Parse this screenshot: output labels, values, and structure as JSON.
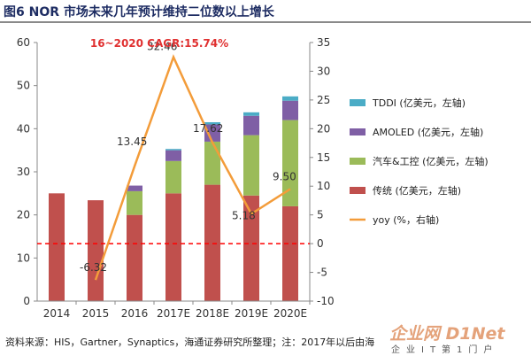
{
  "title": "图6  NOR 市场未来几年预计维持二位数以上增长",
  "source": "资料来源：HIS，Gartner，Synaptics，海通证券研究所整理；注：2017年以后由海",
  "watermark": {
    "main": "企业网 D1Net",
    "sub": "企业IT第1门户"
  },
  "colors": {
    "tddi": "#4bacc6",
    "amoled": "#7f5fa5",
    "auto": "#9bbb59",
    "traditional": "#c0504d",
    "yoy": "#f39c3a",
    "zero_line": "#ff0000"
  },
  "chart_data": {
    "type": "bar",
    "stacked": true,
    "annotation": "16~2020 CAGR:15.74%",
    "categories": [
      "2014",
      "2015",
      "2016",
      "2017E",
      "2018E",
      "2019E",
      "2020E"
    ],
    "y_left": {
      "range": [
        0,
        60
      ],
      "ticks": [
        "0",
        "10",
        "20",
        "30",
        "40",
        "50",
        "60"
      ]
    },
    "y_right": {
      "range": [
        -10,
        35
      ],
      "ticks": [
        "-10",
        "-5",
        "0",
        "5",
        "10",
        "15",
        "20",
        "25",
        "30",
        "35"
      ]
    },
    "series": [
      {
        "name": "传统 (亿美元，左轴)",
        "key": "traditional",
        "values": [
          25,
          23.4,
          20,
          25,
          27,
          24.5,
          22
        ]
      },
      {
        "name": "汽车&工控 (亿美元，左轴)",
        "key": "auto",
        "values": [
          0,
          0,
          5.5,
          7.5,
          10,
          14,
          20
        ]
      },
      {
        "name": "AMOLED (亿美元，左轴)",
        "key": "amoled",
        "values": [
          0,
          0,
          1.3,
          2.5,
          4,
          4.5,
          4.5
        ]
      },
      {
        "name": "TDDI (亿美元，左轴)",
        "key": "tddi",
        "values": [
          0,
          0,
          0,
          0.3,
          0.5,
          0.8,
          1
        ]
      }
    ],
    "line": {
      "name": "yoy (%，右轴)",
      "key": "yoy",
      "values": [
        null,
        -6.32,
        13.45,
        32.46,
        17.62,
        5.18,
        9.5
      ],
      "labels": [
        "",
        "-6.32",
        "13.45",
        "32.46",
        "17.62",
        "5.18",
        "9.50"
      ]
    },
    "legend": {
      "position": "right",
      "items": [
        {
          "key": "tddi",
          "label": "TDDI (亿美元，左轴)"
        },
        {
          "key": "amoled",
          "label": "AMOLED (亿美元，左轴)"
        },
        {
          "key": "auto",
          "label": "汽车&工控 (亿美元，左轴)"
        },
        {
          "key": "traditional",
          "label": "传统 (亿美元，左轴)"
        },
        {
          "key": "yoy",
          "label": "yoy (%，右轴)"
        }
      ]
    }
  }
}
